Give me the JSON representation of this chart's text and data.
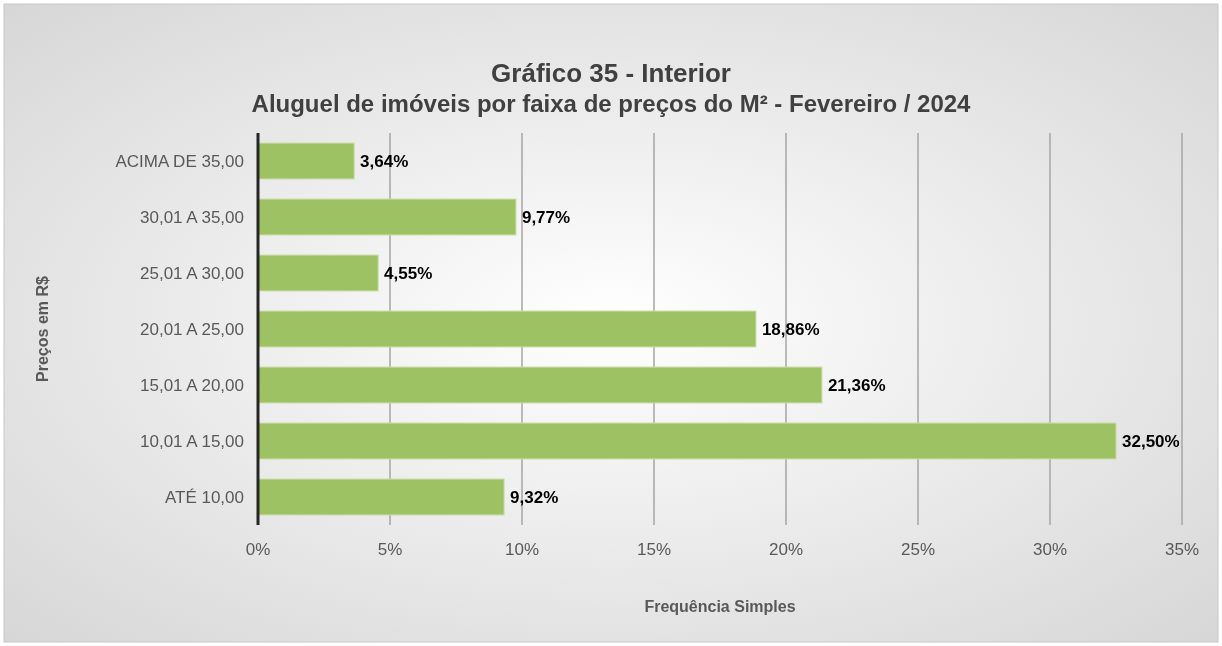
{
  "chart_data": {
    "type": "bar",
    "orientation": "horizontal",
    "title": "Gráfico 35 - Interior",
    "subtitle": "Aluguel de imóveis por faixa de preços do M² - Fevereiro / 2024",
    "xlabel": "Frequência Simples",
    "ylabel": "Preços em R$",
    "categories": [
      "ACIMA DE 35,00",
      "30,01 A 35,00",
      "25,01 A 30,00",
      "20,01 A 25,00",
      "15,01 A 20,00",
      "10,01 A 15,00",
      "ATÉ 10,00"
    ],
    "values": [
      3.64,
      9.77,
      4.55,
      18.86,
      21.36,
      32.5,
      9.32
    ],
    "value_labels": [
      "3,64%",
      "9,77%",
      "4,55%",
      "18,86%",
      "21,36%",
      "32,50%",
      "9,32%"
    ],
    "color": "#9dc264",
    "xlim": [
      0,
      35
    ],
    "xticks": [
      {
        "value": 0,
        "label": "0%"
      },
      {
        "value": 5,
        "label": "5%"
      },
      {
        "value": 10,
        "label": "10%"
      },
      {
        "value": 15,
        "label": "15%"
      },
      {
        "value": 20,
        "label": "20%"
      },
      {
        "value": 25,
        "label": "25%"
      },
      {
        "value": 30,
        "label": "30%"
      },
      {
        "value": 35,
        "label": "35%"
      }
    ],
    "grid": "x"
  }
}
